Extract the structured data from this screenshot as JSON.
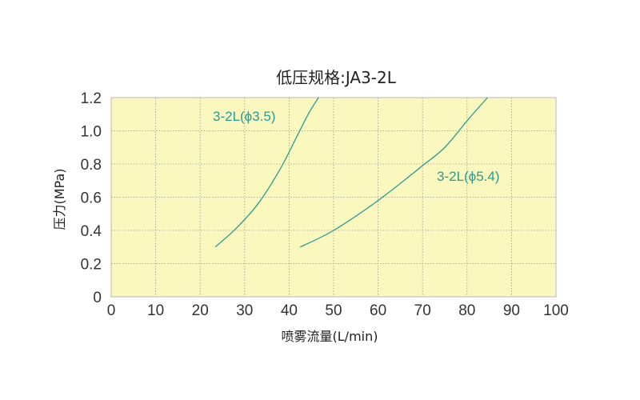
{
  "chart_data": {
    "type": "line",
    "title": "低压规格:JA3-2L",
    "xlabel": "喷雾流量(L/min)",
    "ylabel": "压力(MPa)",
    "xlim": [
      0,
      100
    ],
    "ylim": [
      0,
      1.2
    ],
    "x_ticks": [
      "0",
      "10",
      "20",
      "30",
      "40",
      "50",
      "60",
      "70",
      "80",
      "90",
      "100"
    ],
    "y_ticks": [
      "0",
      "0.2",
      "0.4",
      "0.6",
      "0.8",
      "1.0",
      "1.2"
    ],
    "grid": true,
    "plot_background": "#fbf8bf",
    "series_color": "#2a9d8f",
    "series": [
      {
        "name": "3-2L(ϕ3.5)",
        "x": [
          23.4,
          28,
          33,
          38,
          42,
          44.5,
          46.6
        ],
        "y": [
          0.3,
          0.41,
          0.56,
          0.77,
          0.98,
          1.11,
          1.2
        ]
      },
      {
        "name": "3-2L(ϕ5.4)",
        "x": [
          42.5,
          50,
          60,
          70,
          75,
          80,
          84.6
        ],
        "y": [
          0.3,
          0.4,
          0.58,
          0.79,
          0.9,
          1.06,
          1.2
        ]
      }
    ]
  }
}
